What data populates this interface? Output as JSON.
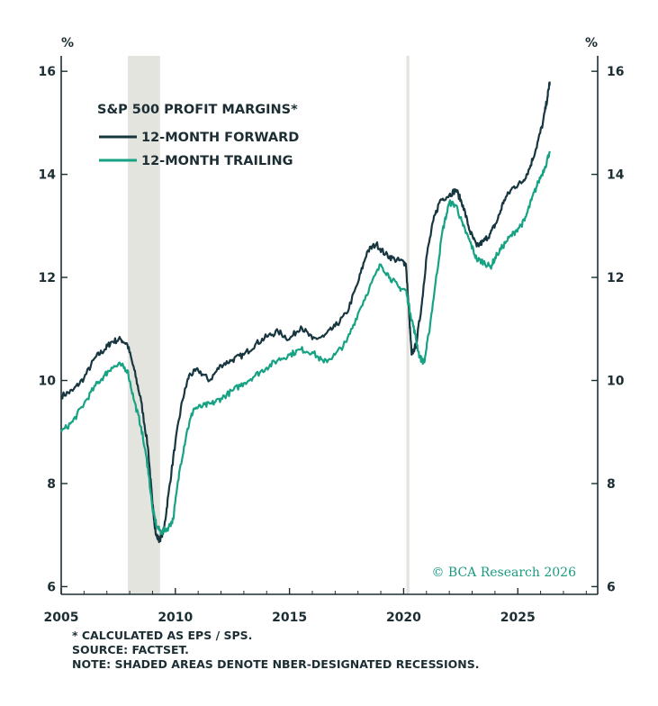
{
  "chart_data": {
    "type": "line",
    "title": "S&P 500 PROFIT MARGINS*",
    "y_unit_left": "%",
    "y_unit_right": "%",
    "xlim": [
      2005.0,
      2028.5
    ],
    "ylim": [
      5.85,
      16.3
    ],
    "x_ticks": [
      2005,
      2010,
      2015,
      2020,
      2025
    ],
    "x_tick_labels": [
      "2005",
      "2010",
      "2015",
      "2020",
      "2025"
    ],
    "y_ticks": [
      6,
      8,
      10,
      12,
      14,
      16
    ],
    "y_tick_labels": [
      "6",
      "8",
      "10",
      "12",
      "14",
      "16"
    ],
    "legend_placement": "top-left",
    "recessions": [
      [
        2007.92,
        2009.33
      ],
      [
        2020.12,
        2020.25
      ]
    ],
    "series": [
      {
        "name": "12-MONTH FORWARD",
        "color": "#173640",
        "points": [
          [
            2005.0,
            9.7
          ],
          [
            2005.5,
            9.8
          ],
          [
            2006.0,
            10.05
          ],
          [
            2006.5,
            10.45
          ],
          [
            2006.9,
            10.6
          ],
          [
            2007.2,
            10.75
          ],
          [
            2007.6,
            10.8
          ],
          [
            2007.9,
            10.7
          ],
          [
            2008.2,
            10.2
          ],
          [
            2008.5,
            9.6
          ],
          [
            2008.8,
            8.7
          ],
          [
            2009.0,
            7.6
          ],
          [
            2009.15,
            7.0
          ],
          [
            2009.3,
            6.9
          ],
          [
            2009.5,
            7.1
          ],
          [
            2009.7,
            7.8
          ],
          [
            2010.0,
            8.8
          ],
          [
            2010.3,
            9.6
          ],
          [
            2010.6,
            10.1
          ],
          [
            2011.0,
            10.2
          ],
          [
            2011.5,
            10.0
          ],
          [
            2012.0,
            10.3
          ],
          [
            2012.5,
            10.4
          ],
          [
            2013.0,
            10.5
          ],
          [
            2013.5,
            10.7
          ],
          [
            2014.0,
            10.85
          ],
          [
            2014.5,
            10.95
          ],
          [
            2015.0,
            10.8
          ],
          [
            2015.5,
            11.05
          ],
          [
            2016.0,
            10.8
          ],
          [
            2016.5,
            10.85
          ],
          [
            2017.0,
            11.05
          ],
          [
            2017.5,
            11.3
          ],
          [
            2018.0,
            11.9
          ],
          [
            2018.4,
            12.5
          ],
          [
            2018.8,
            12.65
          ],
          [
            2019.2,
            12.45
          ],
          [
            2019.6,
            12.35
          ],
          [
            2020.0,
            12.3
          ],
          [
            2020.1,
            12.25
          ],
          [
            2020.25,
            11.2
          ],
          [
            2020.35,
            10.5
          ],
          [
            2020.55,
            10.7
          ],
          [
            2020.8,
            11.5
          ],
          [
            2021.0,
            12.4
          ],
          [
            2021.3,
            13.1
          ],
          [
            2021.6,
            13.5
          ],
          [
            2022.0,
            13.6
          ],
          [
            2022.3,
            13.7
          ],
          [
            2022.6,
            13.4
          ],
          [
            2022.9,
            12.9
          ],
          [
            2023.2,
            12.6
          ],
          [
            2023.5,
            12.7
          ],
          [
            2023.8,
            12.85
          ],
          [
            2024.1,
            13.1
          ],
          [
            2024.4,
            13.5
          ],
          [
            2024.8,
            13.75
          ],
          [
            2025.2,
            13.85
          ],
          [
            2025.5,
            14.1
          ],
          [
            2025.8,
            14.5
          ],
          [
            2026.1,
            15.0
          ],
          [
            2026.3,
            15.5
          ],
          [
            2026.4,
            15.8
          ]
        ]
      },
      {
        "name": "12-MONTH TRAILING",
        "color": "#17a383",
        "points": [
          [
            2005.0,
            9.0
          ],
          [
            2005.5,
            9.2
          ],
          [
            2006.0,
            9.55
          ],
          [
            2006.5,
            9.9
          ],
          [
            2006.9,
            10.1
          ],
          [
            2007.2,
            10.25
          ],
          [
            2007.6,
            10.3
          ],
          [
            2007.9,
            10.2
          ],
          [
            2008.2,
            9.6
          ],
          [
            2008.5,
            9.1
          ],
          [
            2008.8,
            8.3
          ],
          [
            2009.0,
            7.5
          ],
          [
            2009.2,
            7.15
          ],
          [
            2009.4,
            7.05
          ],
          [
            2009.7,
            7.15
          ],
          [
            2009.9,
            7.3
          ],
          [
            2010.2,
            8.3
          ],
          [
            2010.5,
            9.0
          ],
          [
            2010.8,
            9.45
          ],
          [
            2011.2,
            9.5
          ],
          [
            2011.6,
            9.55
          ],
          [
            2012.0,
            9.65
          ],
          [
            2012.5,
            9.8
          ],
          [
            2013.0,
            9.95
          ],
          [
            2013.5,
            10.1
          ],
          [
            2014.0,
            10.25
          ],
          [
            2014.5,
            10.4
          ],
          [
            2015.0,
            10.5
          ],
          [
            2015.5,
            10.6
          ],
          [
            2016.0,
            10.55
          ],
          [
            2016.5,
            10.35
          ],
          [
            2017.0,
            10.5
          ],
          [
            2017.5,
            10.75
          ],
          [
            2018.0,
            11.3
          ],
          [
            2018.5,
            11.8
          ],
          [
            2019.0,
            12.25
          ],
          [
            2019.4,
            12.0
          ],
          [
            2019.8,
            11.8
          ],
          [
            2020.1,
            11.75
          ],
          [
            2020.3,
            11.3
          ],
          [
            2020.5,
            10.9
          ],
          [
            2020.7,
            10.45
          ],
          [
            2020.9,
            10.35
          ],
          [
            2021.1,
            10.9
          ],
          [
            2021.4,
            11.9
          ],
          [
            2021.7,
            12.9
          ],
          [
            2022.0,
            13.45
          ],
          [
            2022.3,
            13.4
          ],
          [
            2022.6,
            13.0
          ],
          [
            2022.9,
            12.7
          ],
          [
            2023.2,
            12.35
          ],
          [
            2023.5,
            12.3
          ],
          [
            2023.8,
            12.2
          ],
          [
            2024.1,
            12.45
          ],
          [
            2024.5,
            12.7
          ],
          [
            2024.9,
            12.9
          ],
          [
            2025.3,
            13.1
          ],
          [
            2025.6,
            13.5
          ],
          [
            2025.9,
            13.85
          ],
          [
            2026.2,
            14.15
          ],
          [
            2026.4,
            14.45
          ]
        ]
      }
    ]
  },
  "copyright": "© BCA Research 2026",
  "footnotes": {
    "calc": "* CALCULATED AS EPS / SPS.",
    "source": "SOURCE: FACTSET.",
    "note": "NOTE: SHADED AREAS DENOTE NBER-DESIGNATED RECESSIONS."
  },
  "colors": {
    "axis": "#1c2e33",
    "recession_shade": "#e4e4df",
    "copyright": "#1a9a7f"
  }
}
